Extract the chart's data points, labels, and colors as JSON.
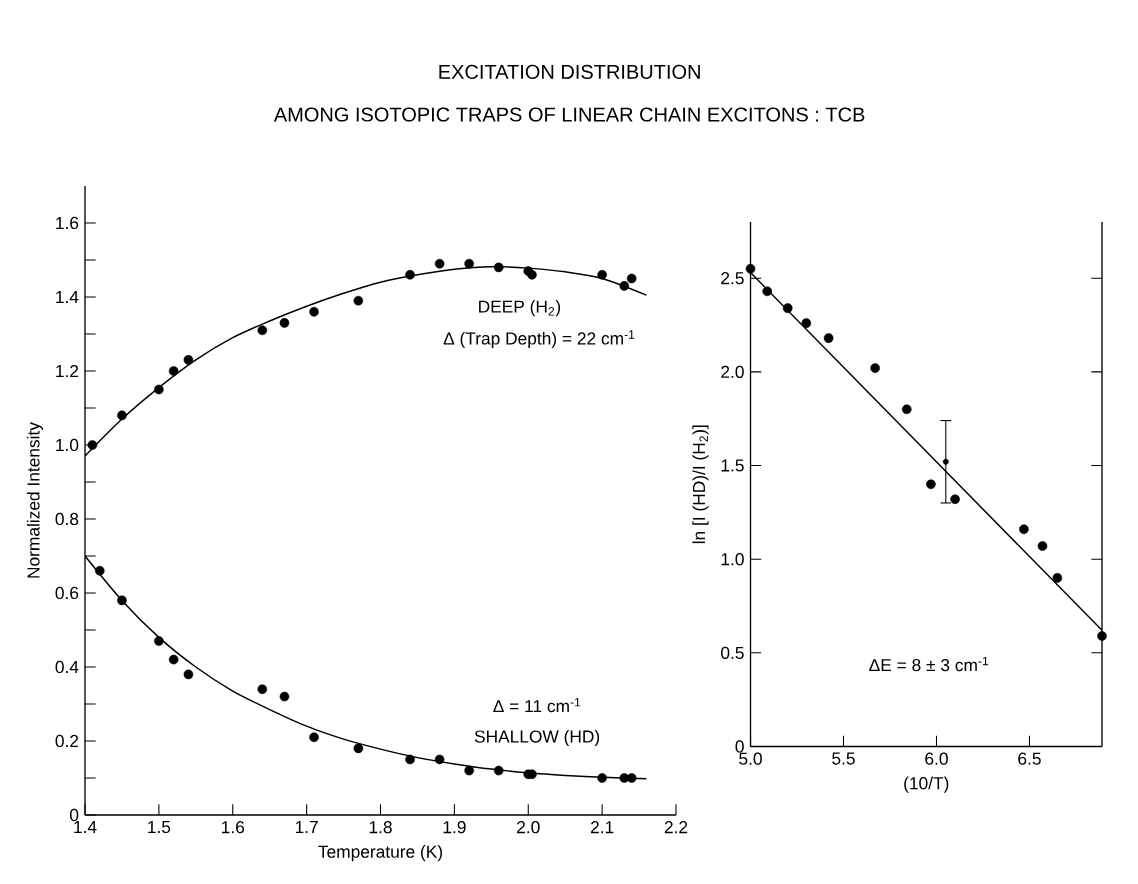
{
  "chart_data": [
    {
      "type": "scatter",
      "title": "EXCITATION DISTRIBUTION",
      "subtitle": "AMONG ISOTOPIC TRAPS OF LINEAR CHAIN EXCITONS : TCB",
      "xlabel": "Temperature (K)",
      "ylabel": "Normalized Intensity",
      "xlim": [
        1.4,
        2.2
      ],
      "ylim": [
        0,
        1.7
      ],
      "xticks": [
        1.4,
        1.5,
        1.6,
        1.7,
        1.8,
        1.9,
        {
          "value": 2,
          "label": "2.0"
        },
        2.1,
        2.2
      ],
      "yticks": [
        0,
        {
          "value": 0.1,
          "label": null
        },
        0.2,
        {
          "value": 0.3,
          "label": null
        },
        0.4,
        {
          "value": 0.5,
          "label": null
        },
        0.6,
        {
          "value": 0.7,
          "label": null
        },
        0.8,
        {
          "value": 0.9,
          "label": null
        },
        {
          "value": 1,
          "label": "1.0"
        },
        {
          "value": 1.1,
          "label": null
        },
        1.2,
        {
          "value": 1.3,
          "label": null
        },
        1.4,
        {
          "value": 1.5,
          "label": null
        },
        1.6
      ],
      "marker": "circle",
      "annotations": [
        "DEEP (H$_{2}$)",
        "Δ (Trap Depth) = 22 cm$^{-1}$",
        "Δ = 11 cm$^{-1}$",
        "SHALLOW (HD)"
      ],
      "series": [
        {
          "color": "#000000",
          "x": [
            1.41,
            1.45,
            1.5,
            1.52,
            1.54,
            1.64,
            1.67,
            1.71,
            1.77,
            1.84,
            1.88,
            1.92,
            1.96,
            2.0,
            2.005,
            2.1,
            2.13,
            2.14
          ],
          "values": [
            1.0,
            1.08,
            1.15,
            1.2,
            1.23,
            1.31,
            1.33,
            1.36,
            1.39,
            1.46,
            1.49,
            1.49,
            1.48,
            1.47,
            1.46,
            1.46,
            1.43,
            1.45
          ]
        },
        {
          "color": "#000000",
          "x": [
            1.42,
            1.45,
            1.5,
            1.52,
            1.54,
            1.64,
            1.67,
            1.71,
            1.77,
            1.84,
            1.88,
            1.92,
            1.96,
            2.0,
            2.005,
            2.1,
            2.13,
            2.14
          ],
          "values": [
            0.66,
            0.58,
            0.47,
            0.42,
            0.38,
            0.34,
            0.32,
            0.21,
            0.18,
            0.15,
            0.15,
            0.12,
            0.12,
            0.11,
            0.11,
            0.1,
            0.1,
            0.1
          ]
        },
        {
          "type": "line",
          "marker": "none",
          "color": "#000000",
          "x": [
            1.4,
            1.45,
            1.5,
            1.55,
            1.6,
            1.65,
            1.7,
            1.75,
            1.8,
            1.85,
            1.9,
            1.95,
            2.0,
            2.05,
            2.1,
            2.16
          ],
          "values": [
            0.97,
            1.07,
            1.155,
            1.23,
            1.29,
            1.335,
            1.375,
            1.41,
            1.44,
            1.46,
            1.475,
            1.482,
            1.478,
            1.468,
            1.45,
            1.405
          ]
        },
        {
          "type": "line",
          "marker": "none",
          "color": "#000000",
          "x": [
            1.4,
            1.45,
            1.5,
            1.55,
            1.6,
            1.65,
            1.7,
            1.75,
            1.8,
            1.85,
            1.9,
            1.95,
            2.0,
            2.05,
            2.1,
            2.16
          ],
          "values": [
            0.7,
            0.58,
            0.48,
            0.4,
            0.335,
            0.285,
            0.24,
            0.205,
            0.178,
            0.155,
            0.138,
            0.124,
            0.114,
            0.107,
            0.102,
            0.098
          ]
        }
      ]
    },
    {
      "type": "scatter",
      "xlabel": "(10/T)",
      "ylabel": "ln [I (HD)/I (H$_{2}$)]",
      "xlim": [
        5.0,
        6.89
      ],
      "ylim": [
        0,
        2.8
      ],
      "xticks": [
        {
          "value": 5,
          "label": "5.0"
        },
        5.5,
        {
          "value": 6,
          "label": "6.0"
        },
        6.5
      ],
      "yticks": [
        0,
        0.5,
        {
          "value": 1,
          "label": "1.0"
        },
        1.5,
        {
          "value": 2,
          "label": "2.0"
        },
        2.5
      ],
      "marker": "circle",
      "annotations": [
        "ΔE = 8 ± 3 cm$^{-1}$"
      ],
      "series": [
        {
          "color": "#000000",
          "x": [
            5.0,
            5.09,
            5.2,
            5.3,
            5.42,
            5.67,
            5.84,
            5.97,
            6.1,
            6.47,
            6.57,
            6.65,
            6.89
          ],
          "values": [
            2.55,
            2.43,
            2.34,
            2.26,
            2.18,
            2.02,
            1.8,
            1.4,
            1.32,
            1.16,
            1.07,
            0.9,
            0.59
          ]
        },
        {
          "type": "line",
          "marker": "none",
          "color": "#000000",
          "x": [
            5.0,
            6.89
          ],
          "values": [
            2.53,
            0.62
          ]
        },
        {
          "color": "#000000",
          "marker": "none",
          "x": [
            6.05
          ],
          "values": [
            1.52
          ],
          "errors": [
            0.22
          ]
        }
      ]
    }
  ]
}
